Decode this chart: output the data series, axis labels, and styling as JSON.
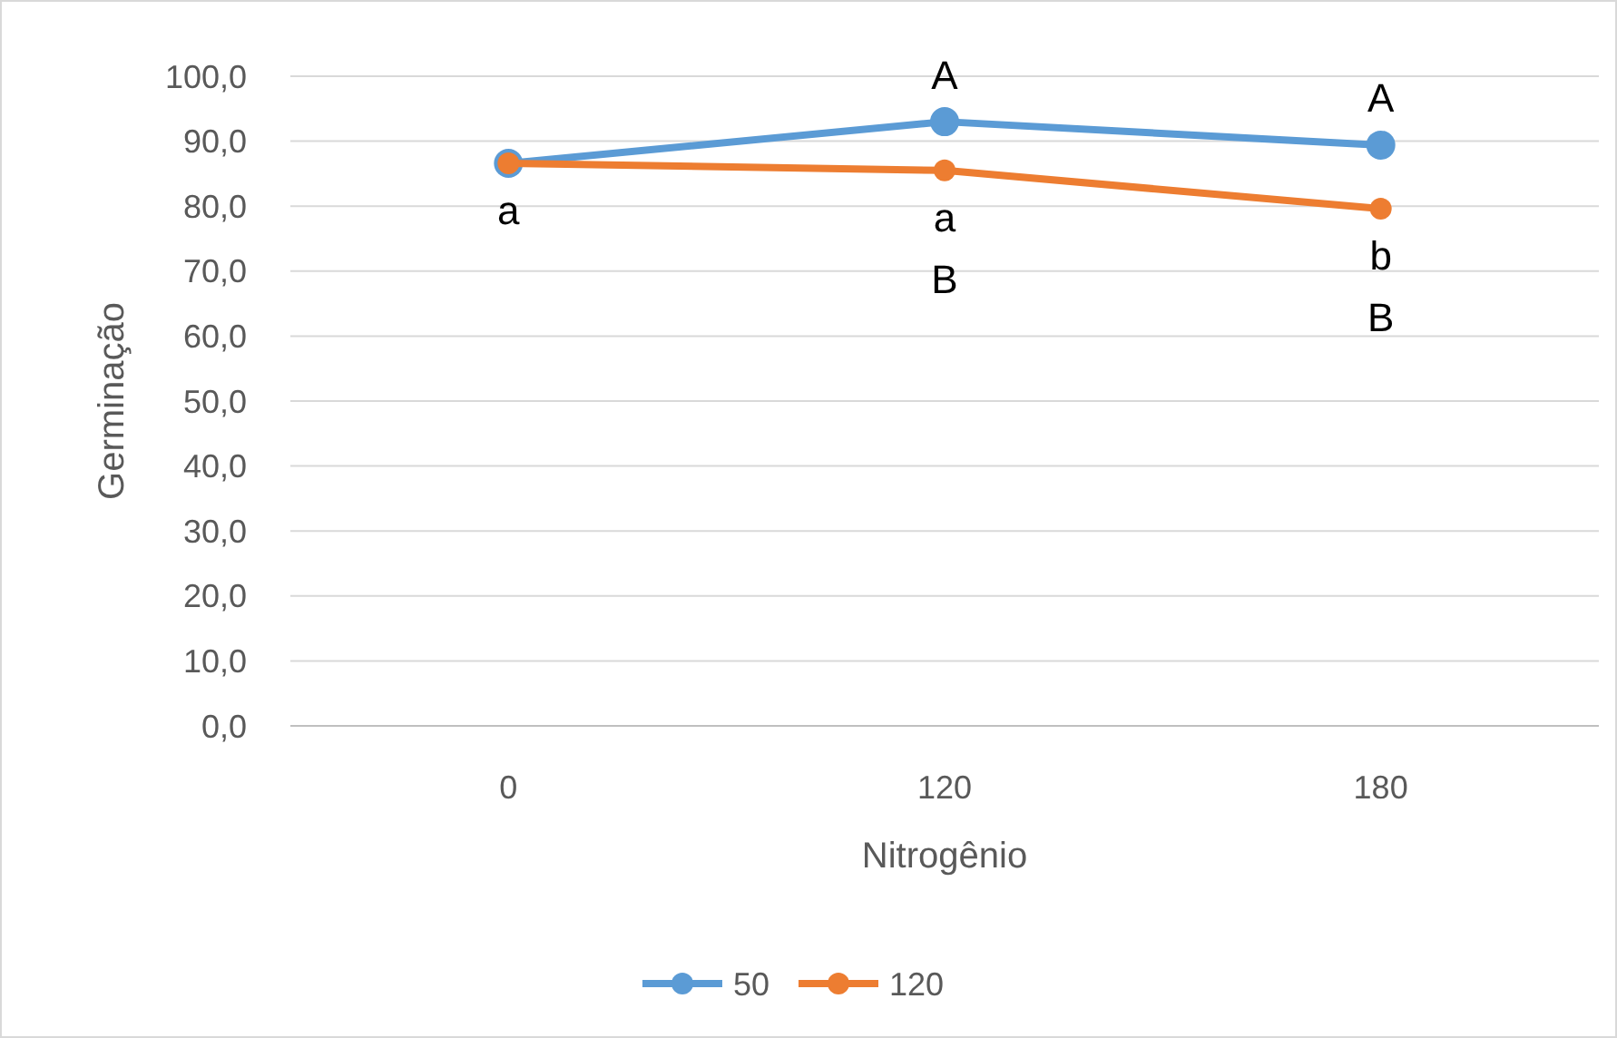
{
  "chart_data": {
    "type": "line",
    "xlabel": "Nitrogênio",
    "ylabel": "Germinação",
    "categories": [
      "0",
      "120",
      "180"
    ],
    "series": [
      {
        "name": "50",
        "color": "#5b9bd5",
        "values": [
          86.6,
          93.0,
          89.4
        ]
      },
      {
        "name": "120",
        "color": "#ed7d31",
        "values": [
          86.6,
          85.5,
          79.6
        ]
      }
    ],
    "ylim": [
      0,
      100
    ],
    "yticks": [
      {
        "value": 0,
        "label": "0,0"
      },
      {
        "value": 10,
        "label": "10,0"
      },
      {
        "value": 20,
        "label": "20,0"
      },
      {
        "value": 30,
        "label": "30,0"
      },
      {
        "value": 40,
        "label": "40,0"
      },
      {
        "value": 50,
        "label": "50,0"
      },
      {
        "value": 60,
        "label": "60,0"
      },
      {
        "value": 70,
        "label": "70,0"
      },
      {
        "value": 80,
        "label": "80,0"
      },
      {
        "value": 90,
        "label": "90,0"
      },
      {
        "value": 100,
        "label": "100,0"
      }
    ],
    "grid": "y",
    "legend": "bottom",
    "marker": "circle",
    "line_style": "solid",
    "annotations": [
      {
        "text": "a",
        "x": "0",
        "y": 86.6
      },
      {
        "text": "A",
        "x": "120",
        "y": 93.0
      },
      {
        "text": "a",
        "x": "120",
        "y": 85.5
      },
      {
        "text": "B",
        "x": "120",
        "y": 85.5
      },
      {
        "text": "A",
        "x": "180",
        "y": 89.4
      },
      {
        "text": "b",
        "x": "180",
        "y": 79.6
      },
      {
        "text": "B",
        "x": "180",
        "y": 79.6
      }
    ]
  }
}
